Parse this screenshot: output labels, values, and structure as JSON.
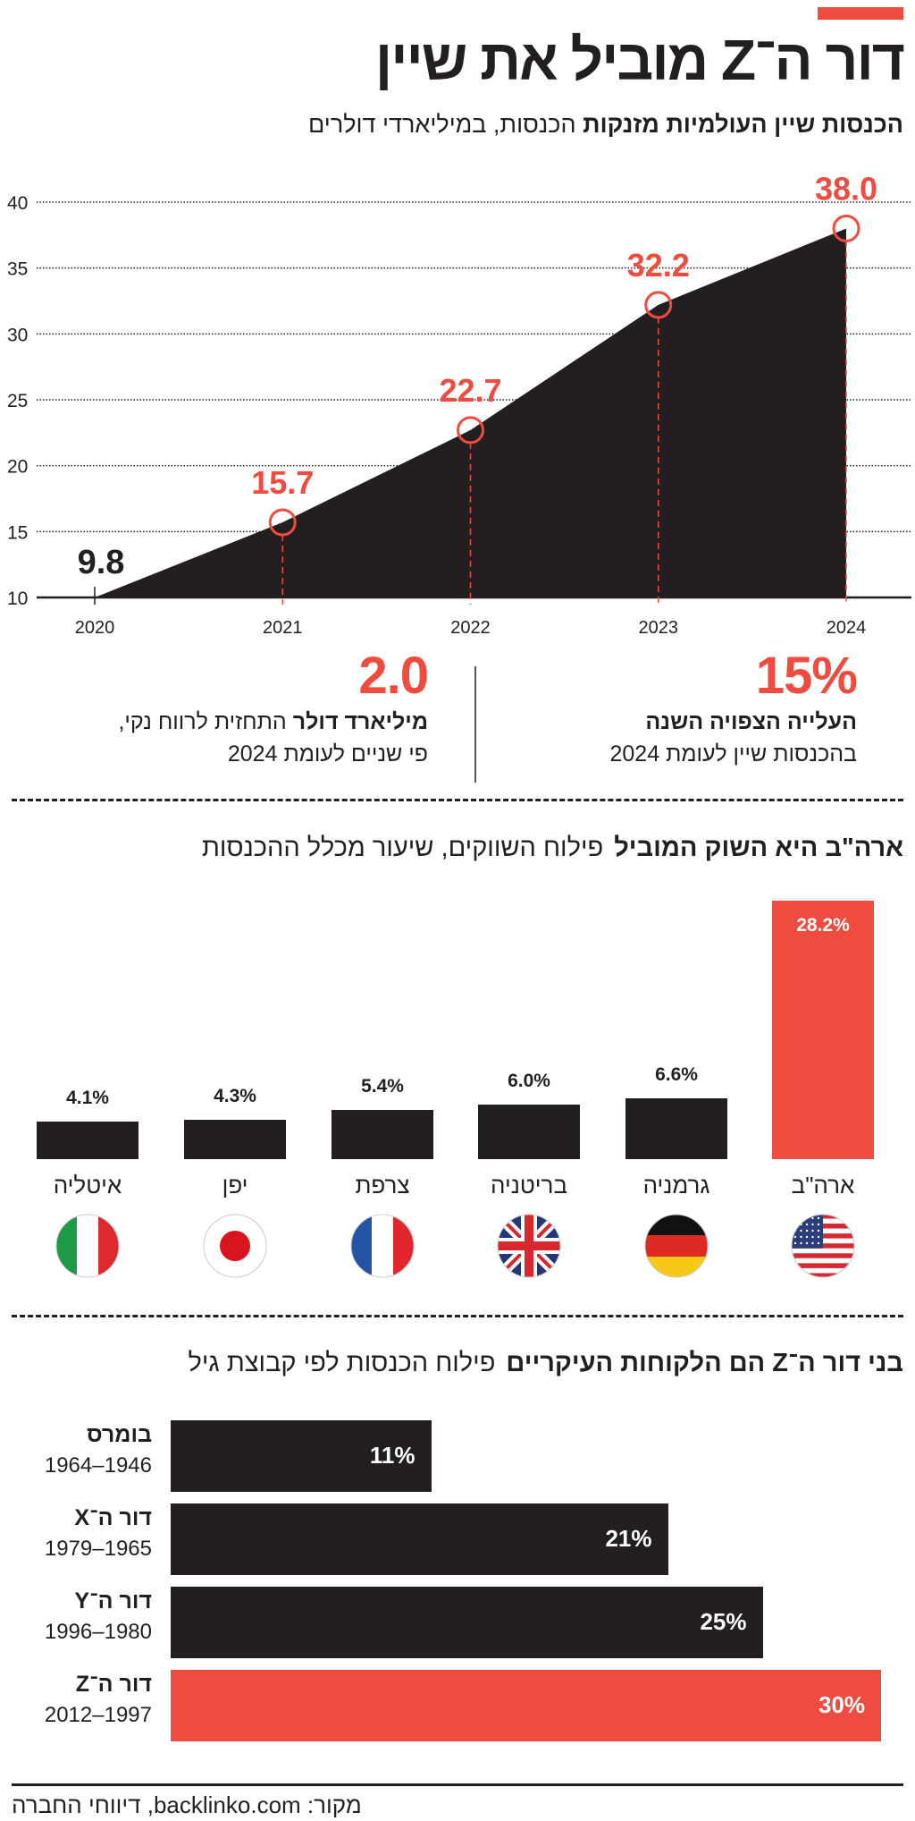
{
  "header": {
    "title": "דור ה־Z מוביל את שיין",
    "subtitle_bold": "הכנסות שיין העולמיות מזנקות",
    "subtitle_regular": "הכנסות, במיליארדי דולרים"
  },
  "stats": [
    {
      "value": "15%",
      "bold": "העלייה הצפויה השנה",
      "text": "בהכנסות שיין לעומת 2024"
    },
    {
      "value": "2.0",
      "bold": "מיליארד דולר",
      "text": "התחזית לרווח נקי,",
      "text2": "פי שניים לעומת 2024"
    }
  ],
  "section2": {
    "title_bold": "ארה\"ב היא השוק המוביל",
    "title_regular": "פילוח השווקים, שיעור מכלל ההכנסות"
  },
  "section3": {
    "title_bold": "בני דור ה־Z הם הלקוחות העיקריים",
    "title_regular": "פילוח הכנסות לפי קבוצת גיל"
  },
  "footer": {
    "source": "מקור: backlinko.com, דיווחי החברה"
  },
  "colors": {
    "accent": "#ef4b3f",
    "dark": "#231f20"
  },
  "chart_data": [
    {
      "type": "area",
      "x": [
        "2020",
        "2021",
        "2022",
        "2023",
        "2024"
      ],
      "values": [
        9.8,
        15.7,
        22.7,
        32.2,
        38.0
      ],
      "data_labels": [
        "9.8",
        "15.7",
        "22.7",
        "32.2",
        "38.0"
      ],
      "ylim": [
        10,
        40
      ],
      "yticks": [
        "10",
        "15",
        "20",
        "25",
        "30",
        "35",
        "40"
      ],
      "grid": true
    },
    {
      "type": "bar",
      "categories": [
        "ארה\"ב",
        "גרמניה",
        "בריטניה",
        "צרפת",
        "יפן",
        "איטליה"
      ],
      "flags": [
        "us-flag-icon",
        "germany-flag-icon",
        "uk-flag-icon",
        "france-flag-icon",
        "japan-flag-icon",
        "italy-flag-icon"
      ],
      "values": [
        28.2,
        6.6,
        6.0,
        5.4,
        4.3,
        4.1
      ],
      "data_labels": [
        "28.2%",
        "6.6%",
        "6.0%",
        "5.4%",
        "4.3%",
        "4.1%"
      ],
      "highlight": "ארה\"ב"
    },
    {
      "type": "bar",
      "orientation": "horizontal",
      "categories": [
        "בומרס",
        "דור ה־X",
        "דור ה־Y",
        "דור ה־Z"
      ],
      "ranges": [
        "1964–1946",
        "1979–1965",
        "1996–1980",
        "2012–1997"
      ],
      "values": [
        11,
        21,
        25,
        30
      ],
      "data_labels": [
        "11%",
        "21%",
        "25%",
        "30%"
      ],
      "highlight": "דור ה־Z"
    }
  ]
}
